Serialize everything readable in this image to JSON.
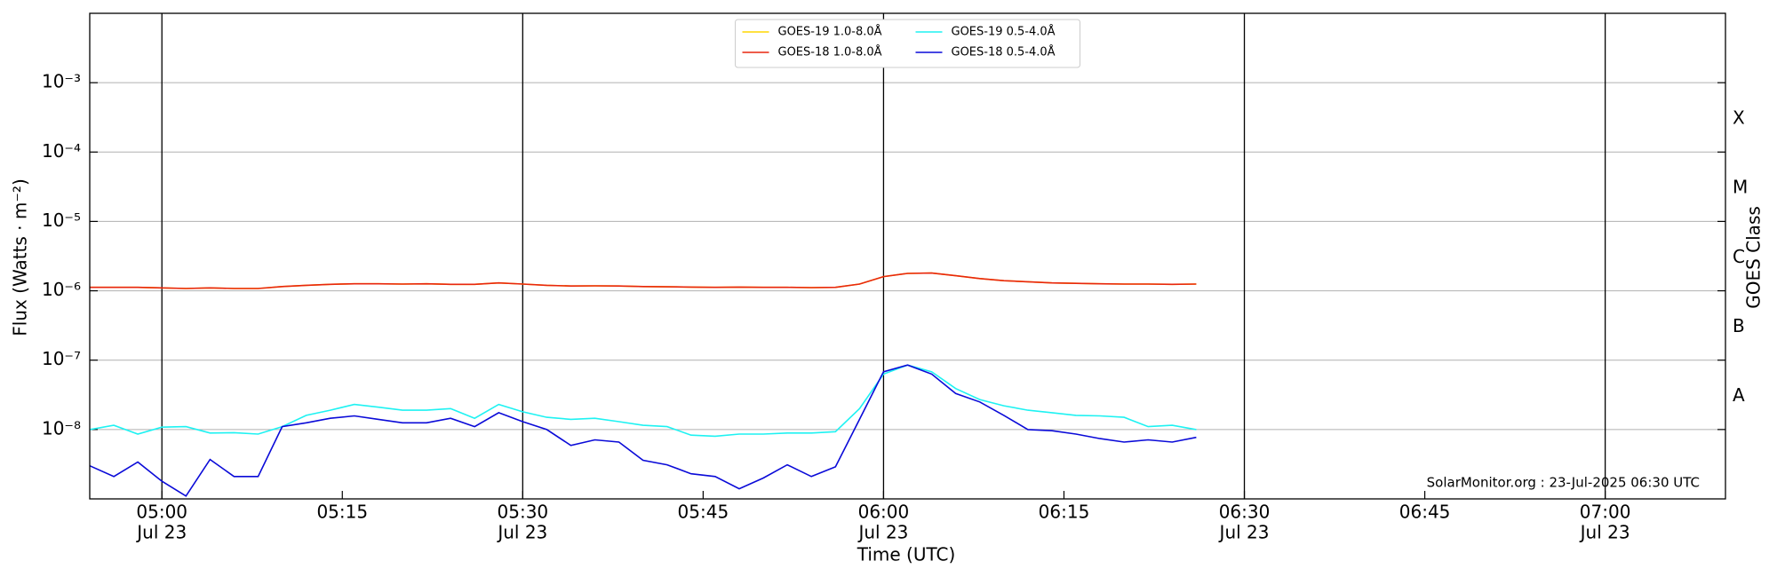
{
  "chart_data": {
    "type": "line",
    "xlabel": "Time (UTC)",
    "ylabel": "Flux (Watts · m⁻²)",
    "y2label": "GOES Class",
    "annotation": "SolarMonitor.org : 23-Jul-2025 06:30 UTC",
    "log_y": true,
    "grid": true,
    "legend": "upper center",
    "xlim": [
      "04:54",
      "07:10"
    ],
    "ylim": [
      1e-09,
      0.01
    ],
    "yticks": [
      {
        "value": 1e-08,
        "label": "10⁻⁸"
      },
      {
        "value": 1e-07,
        "label": "10⁻⁷"
      },
      {
        "value": 1e-06,
        "label": "10⁻⁶"
      },
      {
        "value": 1e-05,
        "label": "10⁻⁵"
      },
      {
        "value": 0.0001,
        "label": "10⁻⁴"
      },
      {
        "value": 0.001,
        "label": "10⁻³"
      }
    ],
    "y2lim": [
      1e-09,
      0.01
    ],
    "y2ticks": [
      {
        "value": 3e-08,
        "label": "A"
      },
      {
        "value": 3e-07,
        "label": "B"
      },
      {
        "value": 3e-06,
        "label": "C"
      },
      {
        "value": 3e-05,
        "label": "M"
      },
      {
        "value": 0.0003,
        "label": "X"
      }
    ],
    "xticks": [
      {
        "value": "05:00",
        "label": "05:00",
        "date": "Jul 23"
      },
      {
        "value": "05:15",
        "label": "05:15"
      },
      {
        "value": "05:30",
        "label": "05:30",
        "date": "Jul 23"
      },
      {
        "value": "05:45",
        "label": "05:45"
      },
      {
        "value": "06:00",
        "label": "06:00",
        "date": "Jul 23"
      },
      {
        "value": "06:15",
        "label": "06:15"
      },
      {
        "value": "06:30",
        "label": "06:30",
        "date": "Jul 23"
      },
      {
        "value": "06:45",
        "label": "06:45"
      },
      {
        "value": "07:00",
        "label": "07:00",
        "date": "Jul 23"
      }
    ],
    "x": [
      "04:54",
      "04:56",
      "04:58",
      "05:00",
      "05:02",
      "05:04",
      "05:06",
      "05:08",
      "05:10",
      "05:12",
      "05:14",
      "05:16",
      "05:18",
      "05:20",
      "05:22",
      "05:24",
      "05:26",
      "05:28",
      "05:30",
      "05:32",
      "05:34",
      "05:36",
      "05:38",
      "05:40",
      "05:42",
      "05:44",
      "05:46",
      "05:48",
      "05:50",
      "05:52",
      "05:54",
      "05:56",
      "05:58",
      "06:00",
      "06:02",
      "06:04",
      "06:06",
      "06:08",
      "06:10",
      "06:12",
      "06:14",
      "06:16",
      "06:18",
      "06:20",
      "06:22",
      "06:24",
      "06:26"
    ],
    "series": [
      {
        "name": "GOES-19 1.0-8.0Å",
        "color": "#ffd700",
        "values": [
          1.12e-06,
          1.12e-06,
          1.12e-06,
          1.1e-06,
          1.08e-06,
          1.1e-06,
          1.08e-06,
          1.08e-06,
          1.15e-06,
          1.2e-06,
          1.24e-06,
          1.26e-06,
          1.26e-06,
          1.25e-06,
          1.26e-06,
          1.24e-06,
          1.24e-06,
          1.3e-06,
          1.25e-06,
          1.2e-06,
          1.17e-06,
          1.18e-06,
          1.17e-06,
          1.15e-06,
          1.14e-06,
          1.13e-06,
          1.12e-06,
          1.13e-06,
          1.12e-06,
          1.12e-06,
          1.11e-06,
          1.12e-06,
          1.25e-06,
          1.6e-06,
          1.78e-06,
          1.8e-06,
          1.65e-06,
          1.5e-06,
          1.4e-06,
          1.35e-06,
          1.3e-06,
          1.28e-06,
          1.26e-06,
          1.25e-06,
          1.25e-06,
          1.24e-06,
          1.25e-06
        ]
      },
      {
        "name": "GOES-18 1.0-8.0Å",
        "color": "#e8260f",
        "values": [
          1.12e-06,
          1.12e-06,
          1.12e-06,
          1.1e-06,
          1.08e-06,
          1.1e-06,
          1.08e-06,
          1.08e-06,
          1.15e-06,
          1.2e-06,
          1.24e-06,
          1.26e-06,
          1.26e-06,
          1.25e-06,
          1.26e-06,
          1.24e-06,
          1.24e-06,
          1.3e-06,
          1.25e-06,
          1.2e-06,
          1.17e-06,
          1.18e-06,
          1.17e-06,
          1.15e-06,
          1.14e-06,
          1.13e-06,
          1.12e-06,
          1.13e-06,
          1.12e-06,
          1.12e-06,
          1.11e-06,
          1.12e-06,
          1.25e-06,
          1.6e-06,
          1.78e-06,
          1.8e-06,
          1.65e-06,
          1.5e-06,
          1.4e-06,
          1.35e-06,
          1.3e-06,
          1.28e-06,
          1.26e-06,
          1.25e-06,
          1.25e-06,
          1.24e-06,
          1.25e-06
        ]
      },
      {
        "name": "GOES-19 0.5-4.0Å",
        "color": "#1ef2f2",
        "values": [
          1e-08,
          1.15e-08,
          8.6e-09,
          1.08e-08,
          1.1e-08,
          8.9e-09,
          9e-09,
          8.6e-09,
          1.1e-08,
          1.6e-08,
          1.9e-08,
          2.3e-08,
          2.1e-08,
          1.9e-08,
          1.9e-08,
          2e-08,
          1.45e-08,
          2.3e-08,
          1.8e-08,
          1.5e-08,
          1.4e-08,
          1.45e-08,
          1.3e-08,
          1.15e-08,
          1.1e-08,
          8.3e-09,
          8e-09,
          8.6e-09,
          8.6e-09,
          8.9e-09,
          8.9e-09,
          9.3e-09,
          2e-08,
          6.3e-08,
          8.5e-08,
          6.8e-08,
          3.9e-08,
          2.7e-08,
          2.2e-08,
          1.9e-08,
          1.75e-08,
          1.6e-08,
          1.57e-08,
          1.5e-08,
          1.1e-08,
          1.15e-08,
          1e-08
        ]
      },
      {
        "name": "GOES-18 0.5-4.0Å",
        "color": "#0a0ad8",
        "values": [
          3e-09,
          2.1e-09,
          3.4e-09,
          1.8e-09,
          1.1e-09,
          3.7e-09,
          2.1e-09,
          2.1e-09,
          1.1e-08,
          1.25e-08,
          1.45e-08,
          1.57e-08,
          1.4e-08,
          1.25e-08,
          1.25e-08,
          1.45e-08,
          1.1e-08,
          1.75e-08,
          1.3e-08,
          1e-08,
          5.9e-09,
          7.1e-09,
          6.6e-09,
          3.6e-09,
          3.1e-09,
          2.3e-09,
          2.1e-09,
          1.4e-09,
          2e-09,
          3.1e-09,
          2.1e-09,
          2.9e-09,
          1.4e-08,
          6.8e-08,
          8.5e-08,
          6.3e-08,
          3.3e-08,
          2.5e-08,
          1.6e-08,
          1e-08,
          9.6e-09,
          8.6e-09,
          7.4e-09,
          6.6e-09,
          7.1e-09,
          6.6e-09,
          7.7e-09
        ]
      }
    ]
  }
}
